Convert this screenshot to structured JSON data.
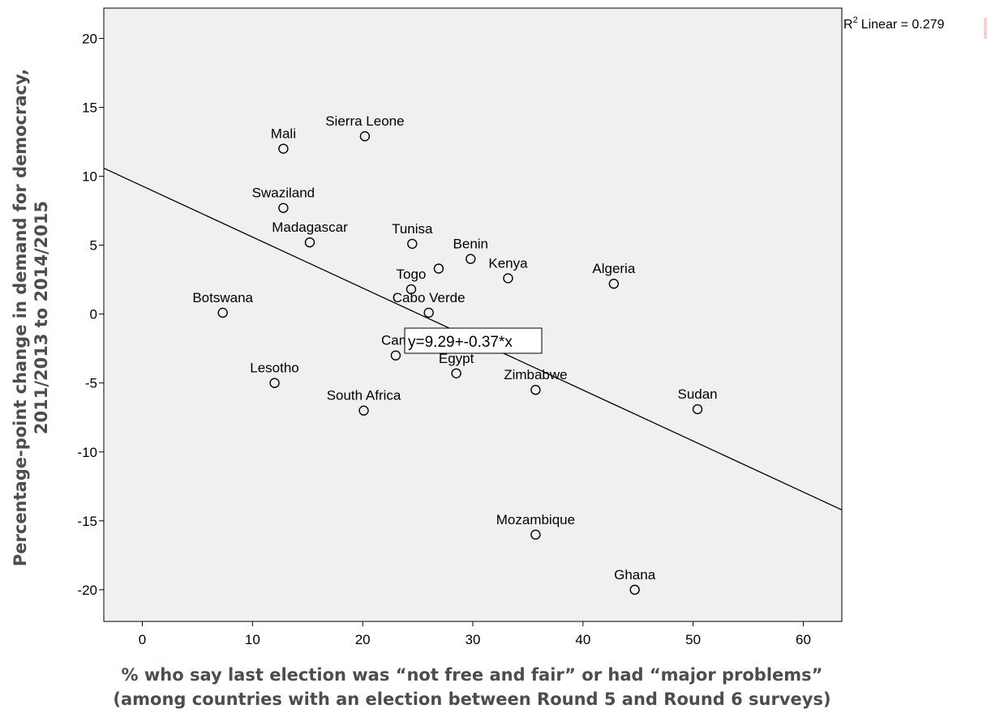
{
  "chart_data": {
    "type": "scatter",
    "xlabel_lines": [
      "% who say last election was “not free and fair” or had “major problems”",
      "(among countries with an election between Round 5 and Round 6 surveys)"
    ],
    "ylabel_lines": [
      "Percentage-point change in demand for democracy,",
      "2011/2013 to 2014/2015"
    ],
    "xlim": [
      -3.5,
      63.5
    ],
    "ylim": [
      -22.3,
      22.2
    ],
    "xticks": [
      0,
      10,
      20,
      30,
      40,
      50,
      60
    ],
    "yticks": [
      20,
      15,
      10,
      5,
      0,
      -5,
      -10,
      -15,
      -20
    ],
    "points": [
      {
        "label": "Mali",
        "x": 12.8,
        "y": 12.0
      },
      {
        "label": "Sierra Leone",
        "x": 20.2,
        "y": 12.9
      },
      {
        "label": "Swaziland",
        "x": 12.8,
        "y": 7.7
      },
      {
        "label": "Madagascar",
        "x": 15.2,
        "y": 5.2
      },
      {
        "label": "Tunisa",
        "x": 24.5,
        "y": 5.1
      },
      {
        "label": "",
        "x": 26.9,
        "y": 3.3
      },
      {
        "label": "Benin",
        "x": 29.8,
        "y": 4.0
      },
      {
        "label": "Kenya",
        "x": 33.2,
        "y": 2.6
      },
      {
        "label": "Algeria",
        "x": 42.8,
        "y": 2.2
      },
      {
        "label": "Togo",
        "x": 24.4,
        "y": 1.8
      },
      {
        "label": "Botswana",
        "x": 7.3,
        "y": 0.1
      },
      {
        "label": "Cabo Verde",
        "x": 26.0,
        "y": 0.1
      },
      {
        "label": "Cam",
        "x": 23.0,
        "y": -3.0
      },
      {
        "label": "Egypt",
        "x": 28.5,
        "y": -4.3
      },
      {
        "label": "Lesotho",
        "x": 12.0,
        "y": -5.0
      },
      {
        "label": "Zimbabwe",
        "x": 35.7,
        "y": -5.5
      },
      {
        "label": "South Africa",
        "x": 20.1,
        "y": -7.0
      },
      {
        "label": "Sudan",
        "x": 50.4,
        "y": -6.9
      },
      {
        "label": "Mozambique",
        "x": 35.7,
        "y": -16.0
      },
      {
        "label": "Ghana",
        "x": 44.7,
        "y": -20.0
      }
    ],
    "fit_line": {
      "intercept": 9.29,
      "slope": -0.37
    },
    "equation": "y=9.29+-0.37*x",
    "r2_text": "Linear = 0.279",
    "r2_prefix": "R",
    "r2_sup": "2",
    "grid": false,
    "colors": {
      "plot_bg": "#f0f0f0",
      "axis_title": "#4d4d4d",
      "ink": "#000000"
    }
  }
}
